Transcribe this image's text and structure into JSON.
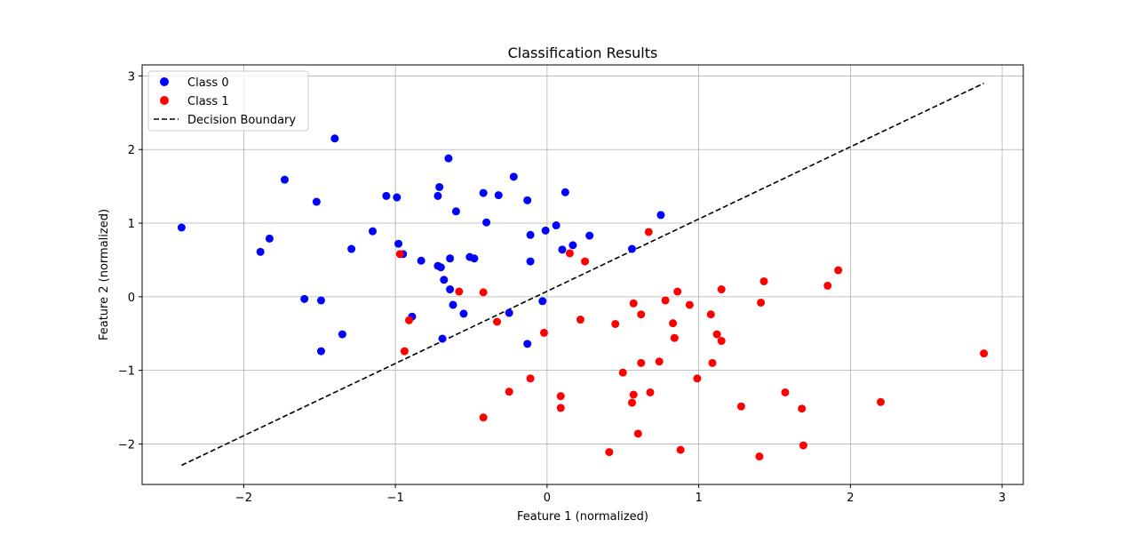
{
  "chart_data": {
    "type": "scatter",
    "title": "Classification Results",
    "xlabel": "Feature 1 (normalized)",
    "ylabel": "Feature 2 (normalized)",
    "xlim": [
      -2.67,
      3.14
    ],
    "ylim": [
      -2.55,
      3.15
    ],
    "x_ticks": [
      -2,
      -1,
      0,
      1,
      2,
      3
    ],
    "y_ticks": [
      -2,
      -1,
      0,
      1,
      2,
      3
    ],
    "x_tick_labels": [
      "−2",
      "−1",
      "0",
      "1",
      "2",
      "3"
    ],
    "y_tick_labels": [
      "−2",
      "−1",
      "0",
      "1",
      "2",
      "3"
    ],
    "grid": true,
    "legend_position": "top-left",
    "series": [
      {
        "name": "Class 0",
        "marker": "circle",
        "color": "#0000ff",
        "points": [
          [
            -2.41,
            0.94
          ],
          [
            -1.89,
            0.61
          ],
          [
            -1.83,
            0.79
          ],
          [
            -1.73,
            1.59
          ],
          [
            -1.6,
            -0.03
          ],
          [
            -1.52,
            1.29
          ],
          [
            -1.49,
            -0.05
          ],
          [
            -1.49,
            -0.74
          ],
          [
            -1.4,
            2.15
          ],
          [
            -1.35,
            -0.51
          ],
          [
            -1.29,
            0.65
          ],
          [
            -1.15,
            0.89
          ],
          [
            -1.06,
            1.37
          ],
          [
            -0.99,
            1.35
          ],
          [
            -0.98,
            0.72
          ],
          [
            -0.95,
            0.58
          ],
          [
            -0.89,
            -0.27
          ],
          [
            -0.83,
            0.49
          ],
          [
            -0.72,
            1.37
          ],
          [
            -0.72,
            0.42
          ],
          [
            -0.71,
            1.49
          ],
          [
            -0.7,
            0.4
          ],
          [
            -0.69,
            -0.57
          ],
          [
            -0.68,
            0.23
          ],
          [
            -0.65,
            1.88
          ],
          [
            -0.64,
            0.52
          ],
          [
            -0.64,
            0.1
          ],
          [
            -0.62,
            -0.11
          ],
          [
            -0.6,
            1.16
          ],
          [
            -0.55,
            -0.23
          ],
          [
            -0.51,
            0.54
          ],
          [
            -0.48,
            0.52
          ],
          [
            -0.42,
            1.41
          ],
          [
            -0.4,
            1.01
          ],
          [
            -0.32,
            1.38
          ],
          [
            -0.25,
            -0.22
          ],
          [
            -0.22,
            1.63
          ],
          [
            -0.13,
            1.31
          ],
          [
            -0.13,
            -0.64
          ],
          [
            -0.11,
            0.84
          ],
          [
            -0.11,
            0.48
          ],
          [
            -0.03,
            -0.06
          ],
          [
            -0.01,
            0.9
          ],
          [
            0.06,
            0.97
          ],
          [
            0.1,
            0.64
          ],
          [
            0.12,
            1.42
          ],
          [
            0.17,
            0.7
          ],
          [
            0.28,
            0.83
          ],
          [
            0.56,
            0.65
          ],
          [
            0.75,
            1.11
          ]
        ]
      },
      {
        "name": "Class 1",
        "marker": "circle",
        "color": "#ff0000",
        "points": [
          [
            -0.97,
            0.58
          ],
          [
            -0.94,
            -0.74
          ],
          [
            -0.91,
            -0.32
          ],
          [
            -0.58,
            0.07
          ],
          [
            -0.42,
            0.06
          ],
          [
            -0.42,
            -1.64
          ],
          [
            -0.33,
            -0.34
          ],
          [
            -0.25,
            -1.29
          ],
          [
            -0.11,
            -1.11
          ],
          [
            -0.02,
            -0.49
          ],
          [
            0.09,
            -1.35
          ],
          [
            0.09,
            -1.51
          ],
          [
            0.15,
            0.59
          ],
          [
            0.22,
            -0.31
          ],
          [
            0.25,
            0.48
          ],
          [
            0.41,
            -2.11
          ],
          [
            0.45,
            -0.37
          ],
          [
            0.5,
            -1.03
          ],
          [
            0.56,
            -1.44
          ],
          [
            0.57,
            -0.09
          ],
          [
            0.57,
            -1.33
          ],
          [
            0.6,
            -1.86
          ],
          [
            0.62,
            -0.24
          ],
          [
            0.62,
            -0.9
          ],
          [
            0.67,
            0.88
          ],
          [
            0.68,
            -1.3
          ],
          [
            0.74,
            -0.88
          ],
          [
            0.78,
            -0.05
          ],
          [
            0.83,
            -0.36
          ],
          [
            0.84,
            -0.56
          ],
          [
            0.86,
            0.07
          ],
          [
            0.88,
            -2.08
          ],
          [
            0.94,
            -0.11
          ],
          [
            0.99,
            -1.11
          ],
          [
            1.08,
            -0.24
          ],
          [
            1.09,
            -0.9
          ],
          [
            1.12,
            -0.51
          ],
          [
            1.15,
            0.1
          ],
          [
            1.15,
            -0.6
          ],
          [
            1.28,
            -1.49
          ],
          [
            1.4,
            -2.17
          ],
          [
            1.41,
            -0.08
          ],
          [
            1.43,
            0.21
          ],
          [
            1.57,
            -1.3
          ],
          [
            1.68,
            -1.52
          ],
          [
            1.69,
            -2.02
          ],
          [
            1.85,
            0.15
          ],
          [
            1.92,
            0.36
          ],
          [
            2.2,
            -1.43
          ],
          [
            2.88,
            -0.77
          ]
        ]
      }
    ],
    "decision_boundary": {
      "name": "Decision Boundary",
      "color": "#000000",
      "style": "dashed",
      "x": [
        -2.41,
        2.88
      ],
      "y": [
        -2.29,
        2.9
      ]
    }
  }
}
